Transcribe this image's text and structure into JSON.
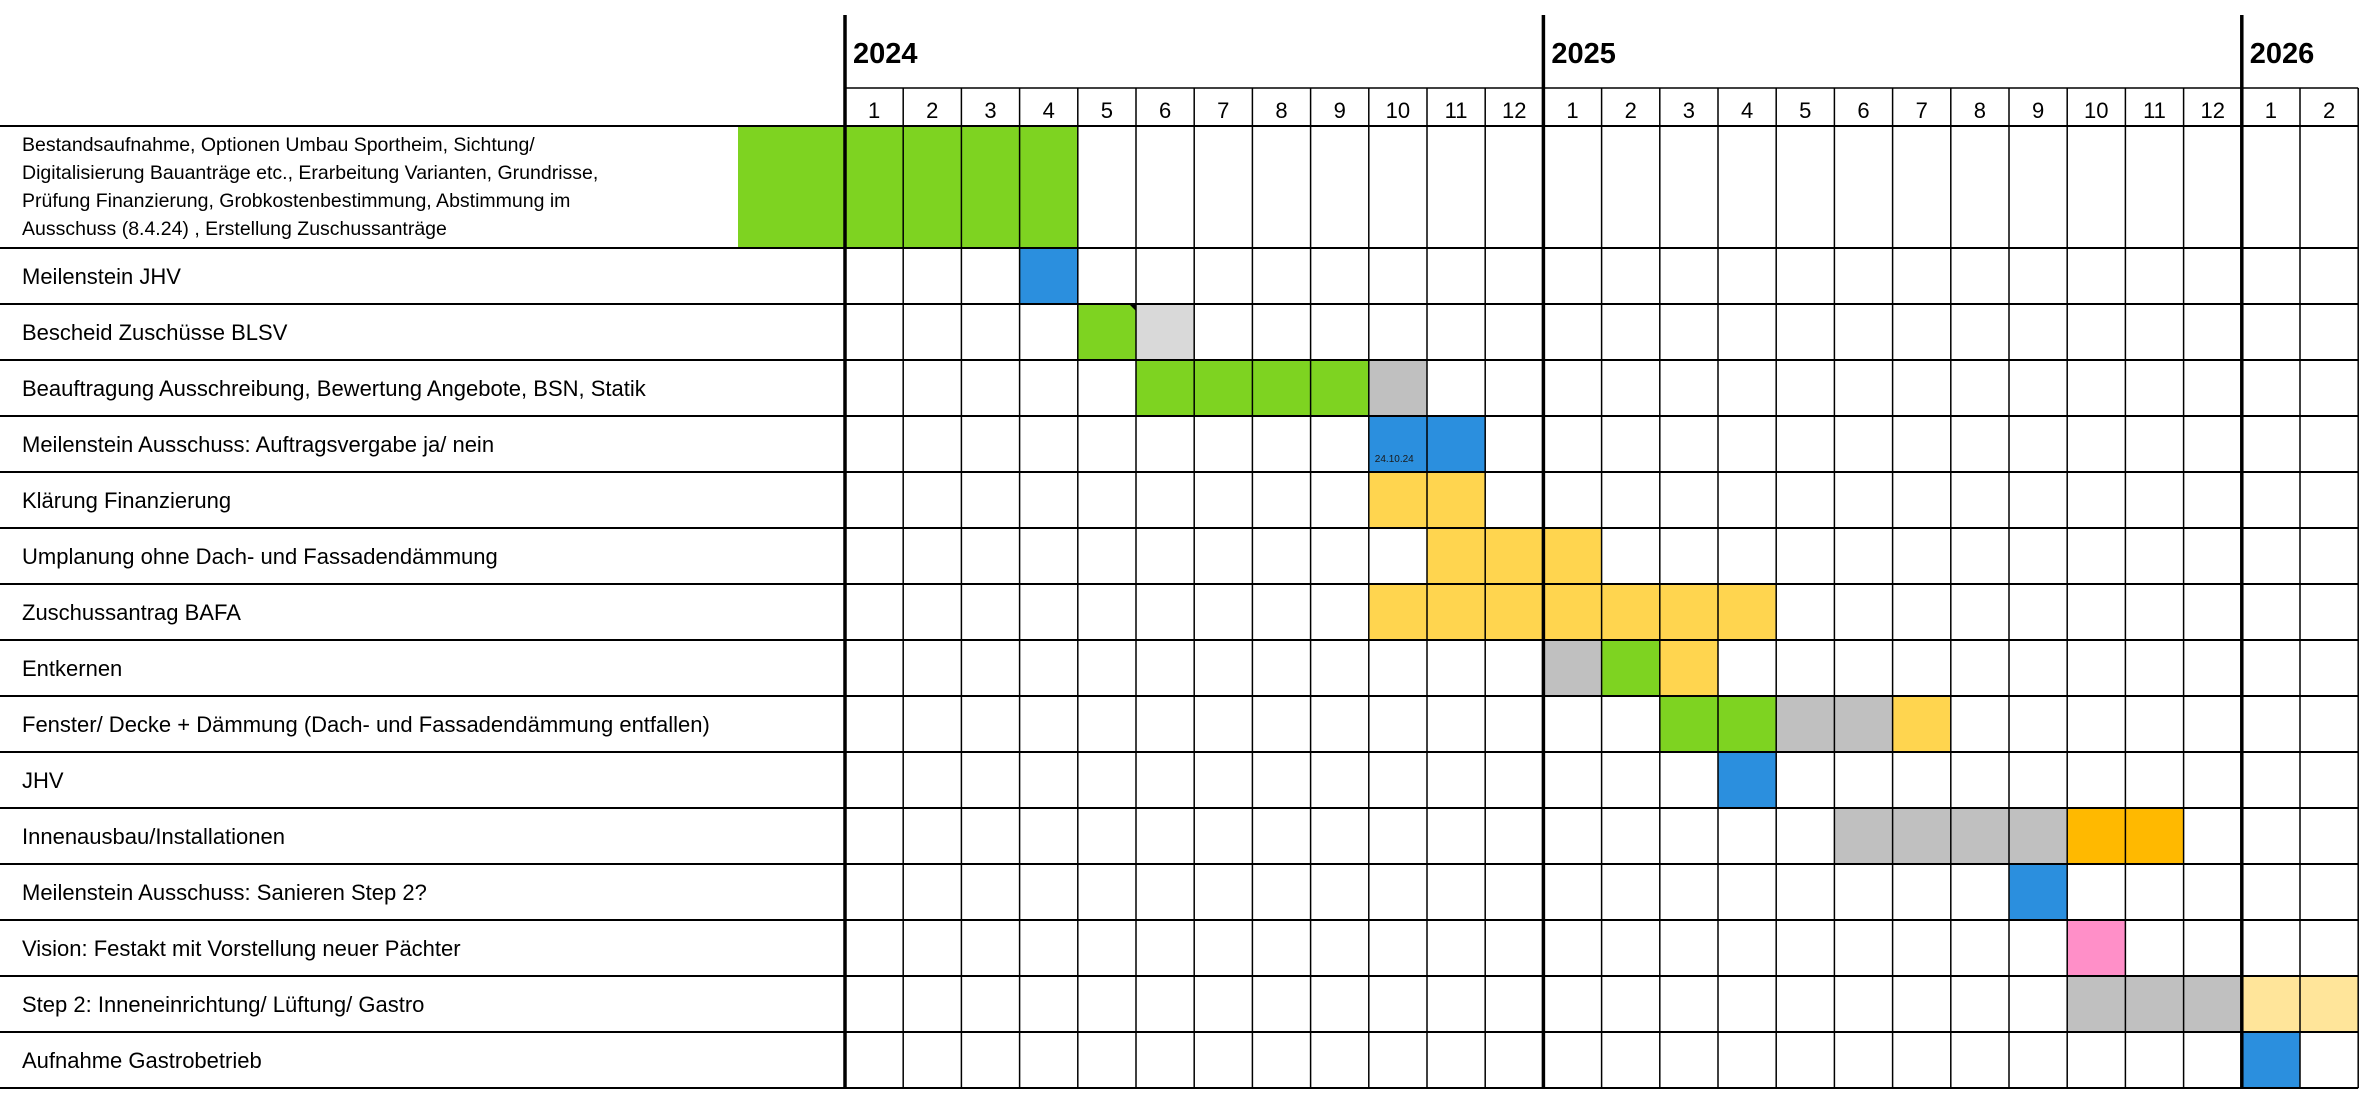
{
  "colors": {
    "green": "#7ED321",
    "blue": "#2B8FDE",
    "gray": "#C0C0C0",
    "light_gray": "#D9D9D9",
    "yellow": "#FFD54F",
    "orange": "#FFB900",
    "pink": "#FF8FC8",
    "light_yellow": "#FFE59A"
  },
  "chart_data": {
    "type": "table",
    "years": [
      {
        "label": "2024",
        "start": 0
      },
      {
        "label": "2025",
        "start": 12
      },
      {
        "label": "2026",
        "start": 24
      }
    ],
    "months": [
      "1",
      "2",
      "3",
      "4",
      "5",
      "6",
      "7",
      "8",
      "9",
      "10",
      "11",
      "12",
      "1",
      "2",
      "3",
      "4",
      "5",
      "6",
      "7",
      "8",
      "9",
      "10",
      "11",
      "12",
      "1",
      "2"
    ],
    "tasks": [
      {
        "lines": [
          "Bestandsaufnahme, Optionen Umbau Sportheim, Sichtung/",
          "Digitalisierung Bauanträge etc., Erarbeitung Varianten, Grundrisse,",
          "Prüfung Finanzierung, Grobkostenbestimmung, Abstimmung im",
          "Ausschuss (8.4.24) , Erstellung Zuschussanträge"
        ],
        "cells": [
          {
            "m": 0,
            "c": "green"
          },
          {
            "m": 1,
            "c": "green"
          },
          {
            "m": 2,
            "c": "green"
          },
          {
            "m": 3,
            "c": "green"
          }
        ],
        "label_fill": "green"
      },
      {
        "lines": [
          "Meilenstein JHV"
        ],
        "cells": [
          {
            "m": 3,
            "c": "blue"
          }
        ]
      },
      {
        "lines": [
          "Bescheid Zuschüsse BLSV"
        ],
        "cells": [
          {
            "m": 4,
            "c": "green"
          },
          {
            "m": 5,
            "c": "light_gray"
          }
        ]
      },
      {
        "lines": [
          "Beauftragung Ausschreibung, Bewertung Angebote,  BSN, Statik"
        ],
        "cells": [
          {
            "m": 5,
            "c": "green"
          },
          {
            "m": 6,
            "c": "green"
          },
          {
            "m": 7,
            "c": "green"
          },
          {
            "m": 8,
            "c": "green"
          },
          {
            "m": 9,
            "c": "gray"
          }
        ]
      },
      {
        "lines": [
          "Meilenstein Ausschuss: Auftragsvergabe ja/ nein"
        ],
        "cells": [
          {
            "m": 9,
            "c": "blue",
            "note": "24.10.24"
          },
          {
            "m": 10,
            "c": "blue"
          }
        ]
      },
      {
        "lines": [
          "Klärung Finanzierung"
        ],
        "cells": [
          {
            "m": 9,
            "c": "yellow"
          },
          {
            "m": 10,
            "c": "yellow"
          }
        ]
      },
      {
        "lines": [
          "Umplanung ohne Dach- und Fassadendämmung"
        ],
        "cells": [
          {
            "m": 10,
            "c": "yellow"
          },
          {
            "m": 11,
            "c": "yellow"
          },
          {
            "m": 12,
            "c": "yellow"
          }
        ]
      },
      {
        "lines": [
          "Zuschussantrag BAFA"
        ],
        "cells": [
          {
            "m": 9,
            "c": "yellow"
          },
          {
            "m": 10,
            "c": "yellow"
          },
          {
            "m": 11,
            "c": "yellow"
          },
          {
            "m": 12,
            "c": "yellow"
          },
          {
            "m": 13,
            "c": "yellow"
          },
          {
            "m": 14,
            "c": "yellow"
          },
          {
            "m": 15,
            "c": "yellow"
          }
        ]
      },
      {
        "lines": [
          "Entkernen"
        ],
        "cells": [
          {
            "m": 12,
            "c": "gray"
          },
          {
            "m": 13,
            "c": "green"
          },
          {
            "m": 14,
            "c": "yellow"
          }
        ]
      },
      {
        "lines": [
          "Fenster/ Decke +  Dämmung (Dach- und Fassadendämmung entfallen)"
        ],
        "cells": [
          {
            "m": 14,
            "c": "green"
          },
          {
            "m": 15,
            "c": "green"
          },
          {
            "m": 16,
            "c": "gray"
          },
          {
            "m": 17,
            "c": "gray"
          },
          {
            "m": 18,
            "c": "yellow"
          }
        ]
      },
      {
        "lines": [
          "JHV"
        ],
        "cells": [
          {
            "m": 15,
            "c": "blue"
          }
        ]
      },
      {
        "lines": [
          "Innenausbau/Installationen"
        ],
        "cells": [
          {
            "m": 17,
            "c": "gray"
          },
          {
            "m": 18,
            "c": "gray"
          },
          {
            "m": 19,
            "c": "gray"
          },
          {
            "m": 20,
            "c": "gray"
          },
          {
            "m": 21,
            "c": "orange"
          },
          {
            "m": 22,
            "c": "orange"
          }
        ]
      },
      {
        "lines": [
          "Meilenstein Ausschuss: Sanieren Step 2?"
        ],
        "cells": [
          {
            "m": 20,
            "c": "blue"
          }
        ]
      },
      {
        "lines": [
          "Vision: Festakt mit Vorstellung neuer Pächter"
        ],
        "cells": [
          {
            "m": 21,
            "c": "pink"
          }
        ]
      },
      {
        "lines": [
          "Step 2: Inneneinrichtung/ Lüftung/ Gastro"
        ],
        "cells": [
          {
            "m": 21,
            "c": "gray"
          },
          {
            "m": 22,
            "c": "gray"
          },
          {
            "m": 23,
            "c": "gray"
          },
          {
            "m": 24,
            "c": "light_yellow"
          },
          {
            "m": 25,
            "c": "light_yellow"
          }
        ]
      },
      {
        "lines": [
          "Aufnahme Gastrobetrieb"
        ],
        "cells": [
          {
            "m": 24,
            "c": "blue"
          }
        ]
      }
    ]
  }
}
